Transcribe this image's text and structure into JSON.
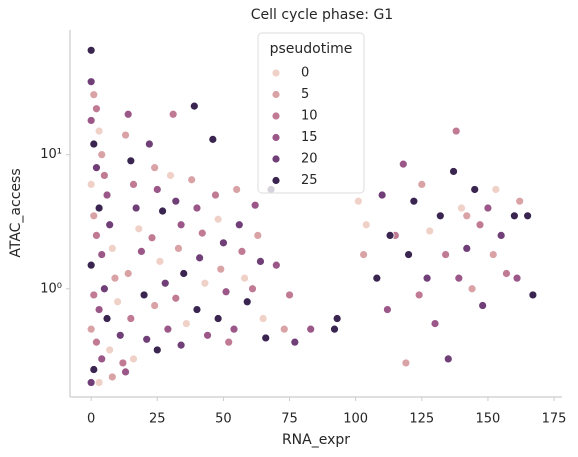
{
  "chart_data": {
    "type": "scatter",
    "title": "Cell cycle phase: G1",
    "xlabel": "RNA_expr",
    "ylabel": "ATAC_access",
    "xlim": [
      -8,
      178
    ],
    "xticks": [
      0,
      25,
      50,
      75,
      100,
      125,
      150,
      175
    ],
    "ylim": [
      0.156,
      85
    ],
    "yscale": "log",
    "yticks": [
      {
        "value": 1,
        "label": "10⁰"
      },
      {
        "value": 10,
        "label": "10¹"
      }
    ],
    "grid": false,
    "legend_position": "upper center",
    "hue": {
      "name": "pseudotime",
      "levels": [
        0,
        5,
        10,
        15,
        20,
        25
      ],
      "colors": [
        "#f0d1c8",
        "#d9a3a6",
        "#c07a94",
        "#9b5788",
        "#703f77",
        "#3a2450"
      ]
    },
    "x": [
      0,
      0,
      1,
      2,
      0,
      3,
      1,
      4,
      2,
      5,
      0,
      6,
      3,
      1,
      7,
      2,
      8,
      4,
      0,
      9,
      5,
      1,
      10,
      3,
      6,
      0,
      11,
      2,
      7,
      4,
      1,
      8,
      0,
      12,
      3,
      14,
      13,
      15,
      16,
      17,
      18,
      19,
      14,
      20,
      15,
      21,
      16,
      13,
      22,
      24,
      25,
      27,
      23,
      26,
      28,
      24,
      29,
      25,
      31,
      30,
      32,
      34,
      33,
      35,
      32,
      36,
      34,
      39,
      38,
      40,
      42,
      41,
      43,
      40,
      44,
      46,
      47,
      48,
      50,
      49,
      51,
      48,
      52,
      55,
      56,
      57,
      58,
      54,
      59,
      62,
      63,
      64,
      61,
      65,
      66,
      68,
      70,
      73,
      75,
      77,
      83,
      92,
      93,
      101,
      103,
      104,
      108,
      110,
      112,
      115,
      118,
      119,
      120,
      122,
      124,
      125,
      127,
      128,
      130,
      132,
      134,
      135,
      137,
      138,
      139,
      140,
      142,
      144,
      145,
      147,
      148,
      150,
      152,
      153,
      155,
      157,
      160,
      161,
      162,
      165,
      167,
      113,
      142
    ],
    "y": [
      60,
      35,
      28,
      22,
      18,
      15,
      12,
      10,
      8,
      7,
      6,
      5,
      4,
      3.5,
      3,
      2.5,
      2,
      1.8,
      1.5,
      1.2,
      1,
      0.9,
      0.8,
      0.7,
      0.6,
      0.5,
      0.45,
      0.4,
      0.35,
      0.3,
      0.25,
      0.22,
      0.2,
      0.28,
      0.2,
      20,
      14,
      9,
      6,
      4,
      2.8,
      1.9,
      1.3,
      0.9,
      0.6,
      0.42,
      0.3,
      0.24,
      12,
      8,
      5.5,
      3.8,
      2.4,
      1.6,
      1.1,
      0.75,
      0.5,
      0.35,
      20,
      7,
      4.5,
      3,
      2,
      1.3,
      0.85,
      0.55,
      0.38,
      23,
      6.5,
      4,
      2.6,
      1.7,
      1.1,
      0.7,
      0.45,
      13,
      5,
      3.3,
      2.2,
      1.4,
      0.95,
      0.6,
      0.4,
      5.5,
      3,
      1.9,
      1.2,
      0.5,
      0.8,
      4.2,
      2.5,
      1.6,
      1,
      0.6,
      0.43,
      5.5,
      1.5,
      0.5,
      0.9,
      0.4,
      0.5,
      0.5,
      0.6,
      4.5,
      1.8,
      3,
      1.2,
      5,
      0.7,
      2.5,
      8.5,
      0.28,
      1.8,
      4.5,
      0.9,
      6,
      1.2,
      2.7,
      0.55,
      3.5,
      1.8,
      0.3,
      7.5,
      15,
      1.2,
      4,
      2,
      1,
      5.5,
      3,
      0.75,
      4,
      1.8,
      5.5,
      2.5,
      1.3,
      3.5,
      1.2,
      4.5,
      3.5,
      0.9,
      2.5,
      3.5
    ],
    "pseudotime": [
      25,
      20,
      5,
      10,
      15,
      0,
      25,
      5,
      20,
      10,
      0,
      15,
      25,
      5,
      20,
      10,
      0,
      15,
      25,
      5,
      20,
      10,
      0,
      15,
      25,
      5,
      20,
      10,
      0,
      15,
      25,
      5,
      20,
      10,
      0,
      15,
      5,
      25,
      10,
      20,
      0,
      15,
      5,
      25,
      10,
      20,
      0,
      15,
      20,
      5,
      15,
      25,
      10,
      0,
      20,
      5,
      15,
      25,
      10,
      0,
      20,
      15,
      5,
      25,
      10,
      0,
      20,
      25,
      5,
      15,
      10,
      20,
      0,
      25,
      15,
      25,
      10,
      0,
      20,
      5,
      15,
      25,
      10,
      5,
      20,
      10,
      0,
      15,
      25,
      15,
      5,
      20,
      10,
      0,
      25,
      25,
      15,
      5,
      10,
      20,
      15,
      25,
      25,
      0,
      5,
      0,
      25,
      20,
      15,
      10,
      15,
      5,
      25,
      25,
      10,
      5,
      20,
      0,
      15,
      25,
      10,
      20,
      25,
      10,
      15,
      0,
      20,
      5,
      25,
      10,
      20,
      15,
      5,
      0,
      20,
      10,
      25,
      15,
      5,
      25,
      25,
      25,
      5
    ]
  }
}
